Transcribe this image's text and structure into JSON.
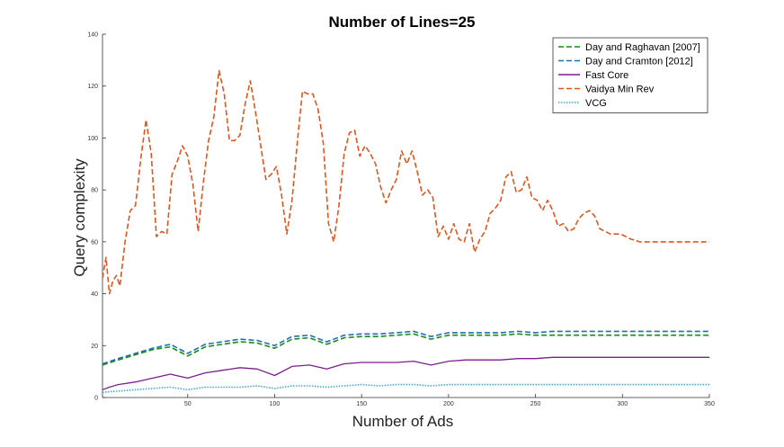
{
  "chart_data": {
    "type": "line",
    "title": "Number of Lines=25",
    "xlabel": "Number of Ads",
    "ylabel": "Query complexity",
    "xlim": [
      1,
      350
    ],
    "ylim": [
      0,
      140
    ],
    "xticks": [
      50,
      100,
      150,
      200,
      250,
      300,
      350
    ],
    "yticks": [
      0,
      20,
      40,
      60,
      80,
      100,
      120,
      140
    ],
    "grid": false,
    "legend_position": "top-right",
    "series": [
      {
        "name": "Day and Raghavan [2007]",
        "color": "#1a8a1a",
        "style": "dashed",
        "x": [
          1,
          10,
          20,
          30,
          40,
          50,
          60,
          70,
          80,
          90,
          100,
          110,
          120,
          130,
          140,
          150,
          160,
          170,
          180,
          190,
          200,
          210,
          220,
          230,
          240,
          250,
          260,
          270,
          280,
          290,
          300,
          310,
          320,
          330,
          340,
          350
        ],
        "y": [
          12.5,
          14.5,
          16.5,
          18.5,
          19.5,
          16,
          19.5,
          20.5,
          21.5,
          21,
          19,
          22.5,
          23,
          20.5,
          23,
          23.5,
          23.5,
          24,
          24.5,
          22.5,
          24,
          24,
          24,
          24,
          24.5,
          24,
          24,
          24,
          24,
          24,
          24,
          24,
          24,
          24,
          24,
          24
        ]
      },
      {
        "name": "Day and Cramton [2012]",
        "color": "#1f6fb4",
        "style": "dashed",
        "x": [
          1,
          10,
          20,
          30,
          40,
          50,
          60,
          70,
          80,
          90,
          100,
          110,
          120,
          130,
          140,
          150,
          160,
          170,
          180,
          190,
          200,
          210,
          220,
          230,
          240,
          250,
          260,
          270,
          280,
          290,
          300,
          310,
          320,
          330,
          340,
          350
        ],
        "y": [
          13,
          15,
          17,
          19,
          20.5,
          17,
          20.5,
          21.5,
          22.5,
          22,
          20,
          23.5,
          24,
          21.5,
          24,
          24.5,
          24.5,
          25,
          25.5,
          23.5,
          25,
          25,
          25,
          25,
          25.5,
          25,
          25.5,
          25.5,
          25.5,
          25.5,
          25.5,
          25.5,
          25.5,
          25.5,
          25.5,
          25.5
        ]
      },
      {
        "name": "Fast Core",
        "color": "#7b1f8c",
        "style": "solid",
        "x": [
          1,
          5,
          10,
          20,
          30,
          40,
          50,
          60,
          70,
          80,
          90,
          100,
          110,
          120,
          130,
          140,
          150,
          160,
          170,
          180,
          190,
          200,
          210,
          220,
          230,
          240,
          250,
          260,
          270,
          280,
          290,
          300,
          310,
          320,
          330,
          340,
          350
        ],
        "y": [
          3,
          4,
          5,
          6,
          7.5,
          9,
          7.5,
          9.5,
          10.5,
          11.5,
          11,
          8.5,
          12,
          12.5,
          11,
          13,
          13.5,
          13.5,
          13.5,
          14,
          12.5,
          14,
          14.5,
          14.5,
          14.5,
          15,
          15,
          15.5,
          15.5,
          15.5,
          15.5,
          15.5,
          15.5,
          15.5,
          15.5,
          15.5,
          15.5
        ]
      },
      {
        "name": "Vaidya Min Rev",
        "color": "#e0561b",
        "style": "dashed",
        "x": [
          1,
          3,
          5,
          7,
          9,
          11,
          14,
          17,
          20,
          23,
          26,
          29,
          32,
          35,
          38,
          41,
          44,
          47,
          50,
          53,
          56,
          59,
          62,
          65,
          68,
          71,
          74,
          77,
          80,
          83,
          86,
          89,
          92,
          95,
          98,
          101,
          104,
          107,
          110,
          113,
          116,
          119,
          122,
          125,
          128,
          131,
          134,
          137,
          140,
          143,
          146,
          149,
          152,
          155,
          158,
          161,
          164,
          167,
          170,
          173,
          176,
          179,
          182,
          185,
          188,
          191,
          194,
          197,
          200,
          203,
          206,
          209,
          212,
          215,
          218,
          221,
          224,
          227,
          230,
          233,
          236,
          239,
          242,
          245,
          248,
          251,
          254,
          257,
          260,
          263,
          266,
          269,
          272,
          275,
          278,
          281,
          284,
          287,
          290,
          293,
          296,
          299,
          302,
          305,
          310,
          315,
          320,
          325,
          330,
          335,
          340,
          345,
          350
        ],
        "y": [
          46,
          54,
          40,
          45,
          47,
          43,
          60,
          72,
          74,
          92,
          107,
          94,
          62,
          64,
          63,
          86,
          91,
          97,
          93,
          82,
          64,
          83,
          99,
          108,
          126,
          117,
          99,
          99,
          101,
          113,
          122,
          110,
          97,
          84,
          86,
          89,
          78,
          63,
          76,
          98,
          118,
          117,
          117,
          111,
          98,
          67,
          60,
          74,
          94,
          102,
          103,
          93,
          97,
          94,
          90,
          81,
          75,
          80,
          84,
          95,
          90,
          95,
          87,
          78,
          80,
          77,
          62,
          66,
          61,
          67,
          61,
          60,
          67,
          56,
          61,
          64,
          71,
          73,
          76,
          85,
          87,
          79,
          80,
          85,
          77,
          76,
          72,
          76,
          72,
          66,
          67,
          64,
          65,
          69,
          71,
          72,
          70,
          65,
          64,
          63,
          63,
          63,
          62,
          61,
          60,
          60,
          60,
          60,
          60,
          60,
          60,
          60,
          60
        ]
      },
      {
        "name": "VCG",
        "color": "#3fa9d6",
        "style": "dotted",
        "x": [
          1,
          10,
          20,
          30,
          40,
          50,
          60,
          70,
          80,
          90,
          100,
          110,
          120,
          130,
          140,
          150,
          160,
          170,
          180,
          190,
          200,
          210,
          220,
          230,
          240,
          250,
          260,
          270,
          280,
          290,
          300,
          310,
          320,
          330,
          340,
          350
        ],
        "y": [
          2,
          2.5,
          3,
          3.5,
          4,
          3,
          4,
          4,
          4,
          4.5,
          3.5,
          4.5,
          4.5,
          4,
          4.5,
          5,
          4.5,
          5,
          5,
          4.5,
          5,
          5,
          5,
          5,
          5,
          5,
          5,
          5,
          5,
          5,
          5,
          5,
          5,
          5,
          5,
          5
        ]
      }
    ]
  }
}
